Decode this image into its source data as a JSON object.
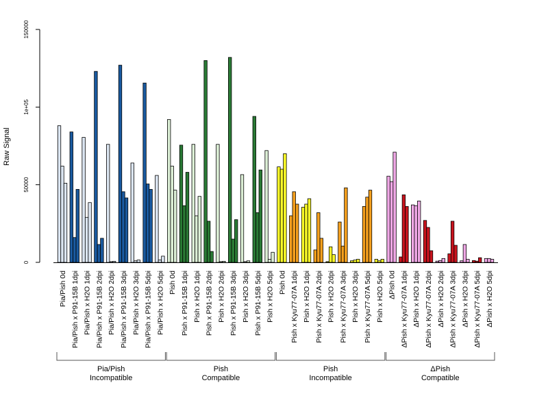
{
  "chart_data": {
    "type": "bar",
    "ylabel": "Raw Signal",
    "ylim": [
      0,
      150000
    ],
    "y_ticks": [
      {
        "value": 0,
        "label": "0"
      },
      {
        "value": 50000,
        "label": "50000"
      },
      {
        "value": 100000,
        "label": "1e+05"
      },
      {
        "value": 150000,
        "label": "150000"
      }
    ],
    "bar_border_color": "#000000",
    "categories": [
      {
        "label": "Pia/Pish 0d",
        "values": [
          88000,
          62000,
          51000
        ],
        "color": "#dce6f2"
      },
      {
        "label": "Pia/Pish x P91-15B 1dpi",
        "values": [
          84000,
          16000,
          47000
        ],
        "color": "#1a5aa0"
      },
      {
        "label": "Pia/Pish x H2O 1dpi",
        "values": [
          80500,
          29000,
          38500
        ],
        "color": "#dce6f2"
      },
      {
        "label": "Pia/Pish x P91-15B 2dpi",
        "values": [
          123000,
          11500,
          15500
        ],
        "color": "#1a5aa0"
      },
      {
        "label": "Pia/Pish x H2O 2dpi",
        "values": [
          76000,
          500,
          700
        ],
        "color": "#dce6f2"
      },
      {
        "label": "Pia/Pish x P91-15B 3dpi",
        "values": [
          127000,
          45500,
          41500
        ],
        "color": "#1a5aa0"
      },
      {
        "label": "Pia/Pish x H2O 3dpi",
        "values": [
          64000,
          1000,
          1500
        ],
        "color": "#dce6f2"
      },
      {
        "label": "Pia/Pish x P91-15B 5dpi",
        "values": [
          115500,
          50500,
          47000
        ],
        "color": "#1a5aa0"
      },
      {
        "label": "Pia/Pish x H2O 5dpi",
        "values": [
          56000,
          1500,
          4000
        ],
        "color": "#dce6f2"
      },
      {
        "label": "Pish 0d",
        "values": [
          92000,
          62000,
          46500
        ],
        "color": "#dcefd6"
      },
      {
        "label": "Pish x P91-15B 1dpi",
        "values": [
          75500,
          36500,
          58000
        ],
        "color": "#2a7a35"
      },
      {
        "label": "Pish x H2O 1dpi",
        "values": [
          76000,
          30000,
          42500
        ],
        "color": "#dcefd6"
      },
      {
        "label": "Pish x P91-15B 2dpi",
        "values": [
          130000,
          26500,
          7000
        ],
        "color": "#2a7a35"
      },
      {
        "label": "Pish x H2O 2dpi",
        "values": [
          76000,
          500,
          700
        ],
        "color": "#dcefd6"
      },
      {
        "label": "Pish x P91-15B 3dpi",
        "values": [
          132000,
          15000,
          27500
        ],
        "color": "#2a7a35"
      },
      {
        "label": "Pish x H2O 3dpi",
        "values": [
          56500,
          500,
          1000
        ],
        "color": "#dcefd6"
      },
      {
        "label": "Pish x P91-15B 5dpi",
        "values": [
          94000,
          32000,
          59500
        ],
        "color": "#2a7a35"
      },
      {
        "label": "Pish x H2O 5dpi",
        "values": [
          72000,
          2000,
          6500
        ],
        "color": "#dcefd6"
      },
      {
        "label": "Pish 0d",
        "values": [
          61500,
          60000,
          70000
        ],
        "color": "#fafa28"
      },
      {
        "label": "Pish x Kyu77-07A 1dpi",
        "values": [
          30000,
          45500,
          37500
        ],
        "color": "#f5a01e"
      },
      {
        "label": "Pish x H2O 1dpi",
        "values": [
          35500,
          37500,
          41000
        ],
        "color": "#fafa28"
      },
      {
        "label": "Pish x Kyu77-07A 2dpi",
        "values": [
          8000,
          32000,
          15500
        ],
        "color": "#f5a01e"
      },
      {
        "label": "Pish x H2O 2dpi",
        "values": [
          500,
          10000,
          5000
        ],
        "color": "#fafa28"
      },
      {
        "label": "Pish x Kyu77-07A 3dpi",
        "values": [
          26000,
          10500,
          48000
        ],
        "color": "#f5a01e"
      },
      {
        "label": "Pish x H2O 3dpi",
        "values": [
          1000,
          1500,
          2000
        ],
        "color": "#fafa28"
      },
      {
        "label": "Pish x Kyu77-07A 5dpi",
        "values": [
          36000,
          42000,
          46500
        ],
        "color": "#f5a01e"
      },
      {
        "label": "Pish x H2O 5dpi",
        "values": [
          2000,
          1000,
          2000
        ],
        "color": "#fafa28"
      },
      {
        "label": "ΔPish 0d",
        "values": [
          55500,
          52000,
          71000
        ],
        "color": "#f0a8e6"
      },
      {
        "label": "ΔPish x Kyu77-07A 1dpi",
        "values": [
          3500,
          43500,
          36000
        ],
        "color": "#c8141e"
      },
      {
        "label": "ΔPish x H2O 1dpi",
        "values": [
          37000,
          36500,
          39500
        ],
        "color": "#f0a8e6"
      },
      {
        "label": "ΔPish x Kyu77-07A 2dpi",
        "values": [
          27000,
          22500,
          7500
        ],
        "color": "#c8141e"
      },
      {
        "label": "ΔPish x H2O 2dpi",
        "values": [
          800,
          1200,
          2500
        ],
        "color": "#f0a8e6"
      },
      {
        "label": "ΔPish x Kyu77-07A 3dpi",
        "values": [
          5500,
          26500,
          11000
        ],
        "color": "#c8141e"
      },
      {
        "label": "ΔPish x H2O 3dpi",
        "values": [
          1000,
          11500,
          2000
        ],
        "color": "#f0a8e6"
      },
      {
        "label": "ΔPish x Kyu77-07A 5dpi",
        "values": [
          1200,
          800,
          3000
        ],
        "color": "#c8141e"
      },
      {
        "label": "ΔPish x H2O 5dpi",
        "values": [
          2500,
          2500,
          2000
        ],
        "color": "#f0a8e6"
      }
    ],
    "groups": [
      {
        "line1": "Pia/Pish",
        "line2": "Incompatible",
        "first": 0,
        "last": 8
      },
      {
        "line1": "Pish",
        "line2": "Compatible",
        "first": 9,
        "last": 17
      },
      {
        "line1": "Pish",
        "line2": "Incompatible",
        "first": 18,
        "last": 26
      },
      {
        "line1": "ΔPish",
        "line2": "Compatible",
        "first": 27,
        "last": 35
      }
    ]
  }
}
